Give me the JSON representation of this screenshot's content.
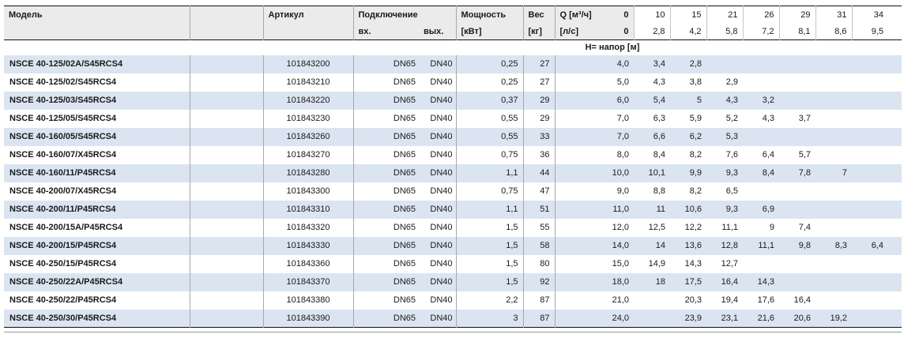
{
  "table": {
    "colors": {
      "row_alt": "#dbe5f1",
      "header_bg": "#ebebeb"
    },
    "headers": {
      "model": "Модель",
      "article": "Артикул",
      "connection": "Подключение",
      "connection_in": "вх.",
      "connection_out": "вых.",
      "power_line1": "Мощность",
      "power_line2": "[кВт]",
      "weight_line1": "Вес",
      "weight_line2": "[кг]",
      "q_label": "Q [м³/ч]",
      "q_zero": "0",
      "ls_label": "[л/с]",
      "ls_zero": "0",
      "q_values": [
        "10",
        "15",
        "21",
        "26",
        "29",
        "31",
        "34"
      ],
      "ls_values": [
        "2,8",
        "4,2",
        "5,8",
        "7,2",
        "8,1",
        "8,6",
        "9,5"
      ],
      "head_label": "Н= напор [м]"
    },
    "rows": [
      {
        "model": "NSCE 40-125/02A/S45RCS4",
        "article": "101843200",
        "conn_in": "DN65",
        "conn_out": "DN40",
        "power": "0,25",
        "weight": "27",
        "h": [
          "4,0",
          "3,4",
          "2,8",
          "",
          "",
          "",
          "",
          ""
        ]
      },
      {
        "model": "NSCE 40-125/02/S45RCS4",
        "article": "101843210",
        "conn_in": "DN65",
        "conn_out": "DN40",
        "power": "0,25",
        "weight": "27",
        "h": [
          "5,0",
          "4,3",
          "3,8",
          "2,9",
          "",
          "",
          "",
          ""
        ]
      },
      {
        "model": "NSCE 40-125/03/S45RCS4",
        "article": "101843220",
        "conn_in": "DN65",
        "conn_out": "DN40",
        "power": "0,37",
        "weight": "29",
        "h": [
          "6,0",
          "5,4",
          "5",
          "4,3",
          "3,2",
          "",
          "",
          ""
        ]
      },
      {
        "model": "NSCE 40-125/05/S45RCS4",
        "article": "101843230",
        "conn_in": "DN65",
        "conn_out": "DN40",
        "power": "0,55",
        "weight": "29",
        "h": [
          "7,0",
          "6,3",
          "5,9",
          "5,2",
          "4,3",
          "3,7",
          "",
          ""
        ]
      },
      {
        "model": "NSCE 40-160/05/S45RCS4",
        "article": "101843260",
        "conn_in": "DN65",
        "conn_out": "DN40",
        "power": "0,55",
        "weight": "33",
        "h": [
          "7,0",
          "6,6",
          "6,2",
          "5,3",
          "",
          "",
          "",
          ""
        ]
      },
      {
        "model": "NSCE 40-160/07/X45RCS4",
        "article": "101843270",
        "conn_in": "DN65",
        "conn_out": "DN40",
        "power": "0,75",
        "weight": "36",
        "h": [
          "8,0",
          "8,4",
          "8,2",
          "7,6",
          "6,4",
          "5,7",
          "",
          ""
        ]
      },
      {
        "model": "NSCE 40-160/11/P45RCS4",
        "article": "101843280",
        "conn_in": "DN65",
        "conn_out": "DN40",
        "power": "1,1",
        "weight": "44",
        "h": [
          "10,0",
          "10,1",
          "9,9",
          "9,3",
          "8,4",
          "7,8",
          "7",
          ""
        ]
      },
      {
        "model": "NSCE 40-200/07/X45RCS4",
        "article": "101843300",
        "conn_in": "DN65",
        "conn_out": "DN40",
        "power": "0,75",
        "weight": "47",
        "h": [
          "9,0",
          "8,8",
          "8,2",
          "6,5",
          "",
          "",
          "",
          ""
        ]
      },
      {
        "model": "NSCE 40-200/11/P45RCS4",
        "article": "101843310",
        "conn_in": "DN65",
        "conn_out": "DN40",
        "power": "1,1",
        "weight": "51",
        "h": [
          "11,0",
          "11",
          "10,6",
          "9,3",
          "6,9",
          "",
          "",
          ""
        ]
      },
      {
        "model": "NSCE 40-200/15A/P45RCS4",
        "article": "101843320",
        "conn_in": "DN65",
        "conn_out": "DN40",
        "power": "1,5",
        "weight": "55",
        "h": [
          "12,0",
          "12,5",
          "12,2",
          "11,1",
          "9",
          "7,4",
          "",
          ""
        ]
      },
      {
        "model": "NSCE 40-200/15/P45RCS4",
        "article": "101843330",
        "conn_in": "DN65",
        "conn_out": "DN40",
        "power": "1,5",
        "weight": "58",
        "h": [
          "14,0",
          "14",
          "13,6",
          "12,8",
          "11,1",
          "9,8",
          "8,3",
          "6,4"
        ]
      },
      {
        "model": "NSCE 40-250/15/P45RCS4",
        "article": "101843360",
        "conn_in": "DN65",
        "conn_out": "DN40",
        "power": "1,5",
        "weight": "80",
        "h": [
          "15,0",
          "14,9",
          "14,3",
          "12,7",
          "",
          "",
          "",
          ""
        ]
      },
      {
        "model": "NSCE 40-250/22A/P45RCS4",
        "article": "101843370",
        "conn_in": "DN65",
        "conn_out": "DN40",
        "power": "1,5",
        "weight": "92",
        "h": [
          "18,0",
          "18",
          "17,5",
          "16,4",
          "14,3",
          "",
          "",
          ""
        ]
      },
      {
        "model": "NSCE 40-250/22/P45RCS4",
        "article": "101843380",
        "conn_in": "DN65",
        "conn_out": "DN40",
        "power": "2,2",
        "weight": "87",
        "h": [
          "21,0",
          "",
          "20,3",
          "19,4",
          "17,6",
          "16,4",
          "",
          ""
        ]
      },
      {
        "model": "NSCE 40-250/30/P45RCS4",
        "article": "101843390",
        "conn_in": "DN65",
        "conn_out": "DN40",
        "power": "3",
        "weight": "87",
        "h": [
          "24,0",
          "",
          "23,9",
          "23,1",
          "21,6",
          "20,6",
          "19,2",
          ""
        ]
      }
    ]
  }
}
